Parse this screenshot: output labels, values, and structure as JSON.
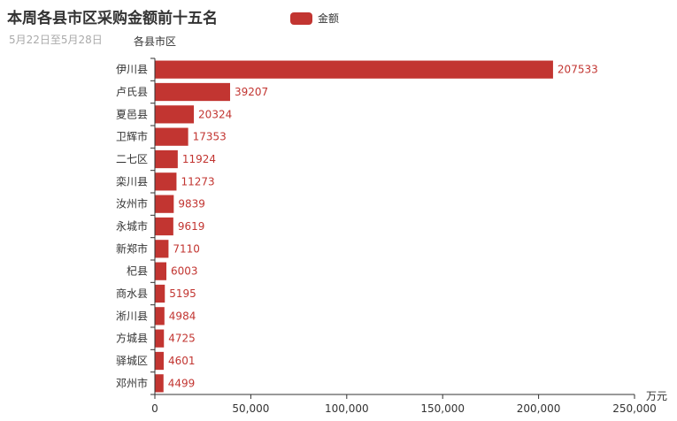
{
  "header": {
    "title": "本周各县市区采购金额前十五名",
    "subtitle": "5月22日至5月28日"
  },
  "legend": {
    "label": "金额",
    "color": "#c23531"
  },
  "chart_data": {
    "type": "bar",
    "orientation": "horizontal",
    "categories": [
      "伊川县",
      "卢氏县",
      "夏邑县",
      "卫辉市",
      "二七区",
      "栾川县",
      "汝州市",
      "永城市",
      "新郑市",
      "杞县",
      "商水县",
      "淅川县",
      "方城县",
      "驿城区",
      "邓州市"
    ],
    "series": [
      {
        "name": "金额",
        "color": "#c23531",
        "values": [
          207533,
          39207,
          20324,
          17353,
          11924,
          11273,
          9839,
          9619,
          7110,
          6003,
          5195,
          4984,
          4725,
          4601,
          4499
        ]
      }
    ],
    "ylabel": "各县市区",
    "xlabel": "万元",
    "xlim": [
      0,
      250000
    ],
    "xticks": [
      0,
      50000,
      100000,
      150000,
      200000,
      250000
    ],
    "xtick_labels": [
      "0",
      "50,000",
      "100,000",
      "150,000",
      "200,000",
      "250,000"
    ],
    "grid": false,
    "legend_position": "top"
  }
}
